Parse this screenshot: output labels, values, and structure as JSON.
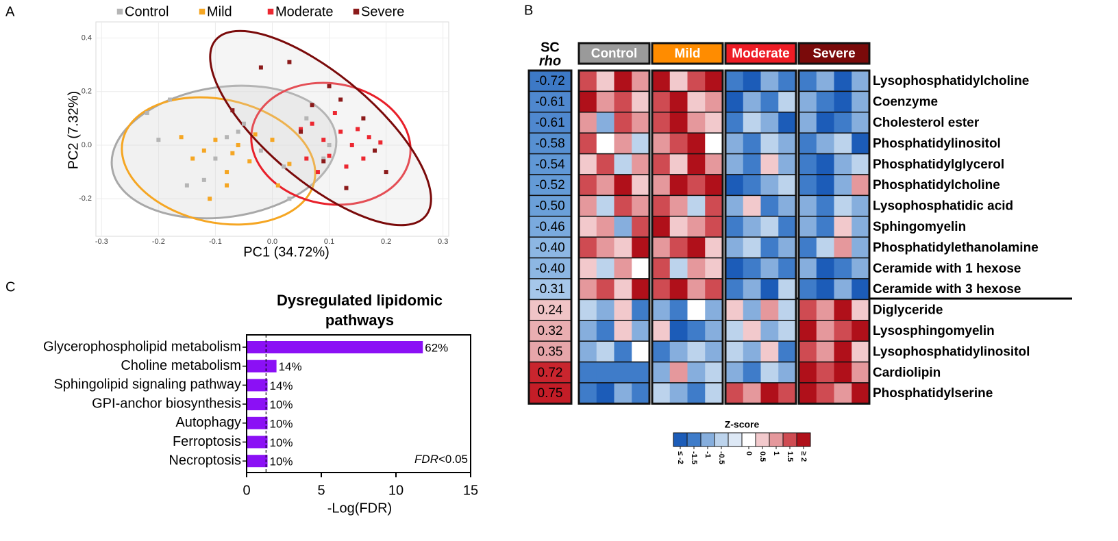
{
  "chart_data": [
    {
      "type": "scatter",
      "panel_label": "A",
      "xlabel": "PC1 (34.72%)",
      "ylabel": "PC2 (7.32%)",
      "xlim": [
        -0.31,
        0.31
      ],
      "ylim": [
        -0.34,
        0.46
      ],
      "xticks": [
        -0.3,
        -0.2,
        -0.1,
        {
          "value": 0,
          "label": "0.0"
        },
        0.1,
        0.2,
        0.3
      ],
      "yticks": [
        -0.2,
        {
          "value": 0,
          "label": "0.0"
        },
        0.2,
        0.4
      ],
      "grid": true,
      "legend": "top",
      "series": [
        {
          "name": "Control",
          "color": "#b5b5b5",
          "x": [
            -0.22,
            -0.18,
            -0.15,
            -0.12,
            -0.1,
            -0.08,
            -0.06,
            -0.05,
            -0.02,
            0.03,
            0.02,
            -0.2,
            0.06,
            0.09,
            0.1
          ],
          "values": [
            0.12,
            0.17,
            -0.15,
            -0.13,
            -0.05,
            0.03,
            0.05,
            0.08,
            -0.02,
            -0.2,
            -0.08,
            0.02,
            0.1,
            -0.05,
            0.0
          ]
        },
        {
          "name": "Mild",
          "color": "#f5a623",
          "x": [
            -0.16,
            -0.14,
            -0.12,
            -0.1,
            -0.08,
            -0.07,
            -0.06,
            -0.04,
            -0.03,
            0.0,
            0.03,
            -0.11,
            -0.08,
            0.01
          ],
          "values": [
            0.03,
            -0.05,
            -0.02,
            0.02,
            -0.1,
            -0.03,
            0.0,
            -0.06,
            0.04,
            0.02,
            -0.07,
            -0.2,
            -0.15,
            -0.15
          ]
        },
        {
          "name": "Moderate",
          "color": "#ec2730",
          "x": [
            0.05,
            0.07,
            0.09,
            0.1,
            0.12,
            0.13,
            0.14,
            0.15,
            0.16,
            0.17,
            0.06,
            0.11,
            0.19,
            0.08
          ],
          "values": [
            0.06,
            0.08,
            0.02,
            -0.04,
            0.05,
            -0.08,
            0.0,
            0.06,
            -0.05,
            0.03,
            -0.05,
            0.12,
            0.01,
            -0.1
          ]
        },
        {
          "name": "Severe",
          "color": "#8b1a1a",
          "x": [
            -0.02,
            0.03,
            -0.07,
            0.07,
            0.1,
            0.12,
            0.05,
            0.13,
            0.2,
            0.16,
            0.09,
            0.18
          ],
          "values": [
            0.29,
            0.31,
            0.13,
            0.15,
            0.22,
            0.17,
            0.05,
            -0.16,
            -0.1,
            0.1,
            -0.06,
            -0.02
          ]
        }
      ]
    },
    {
      "type": "heatmap",
      "panel_label": "B",
      "header": [
        "SC",
        "rho"
      ],
      "groups": [
        "Control",
        "Mild",
        "Moderate",
        "Severe"
      ],
      "group_colors": [
        "#9a9a9a",
        "#ff8c00",
        "#ee1c25",
        "#7a0a0a"
      ],
      "rows": [
        "Lysophosphatidylcholine",
        "Coenzyme",
        "Cholesterol ester",
        "Phosphatidylinositol",
        "Phosphatidylglycerol",
        "Phosphatidylcholine",
        "Lysophosphatidic acid",
        "Sphingomyelin",
        "Phosphatidylethanolamine",
        "Ceramide with 1 hexose",
        "Ceramide with 3 hexose",
        "Diglyceride",
        "Lysosphingomyelin",
        "Lysophosphatidylinositol",
        "Cardiolipin",
        "Phosphatidylserine"
      ],
      "rho": [
        -0.72,
        -0.61,
        -0.61,
        -0.58,
        -0.54,
        -0.52,
        -0.5,
        -0.46,
        -0.4,
        -0.4,
        -0.31,
        0.24,
        0.32,
        0.35,
        0.72,
        0.75
      ],
      "rho_labels": [
        "-0.72",
        "-0.61",
        "-0.61",
        "-0.58",
        "-0.54",
        "-0.52",
        "-0.50",
        "-0.46",
        "-0.40",
        "-0.40",
        "-0.31",
        "0.24",
        "0.32",
        "0.35",
        "0.72",
        "0.75"
      ],
      "rho_colors": [
        "#3d79c6",
        "#4f88cf",
        "#4f88cf",
        "#5790d2",
        "#6098d6",
        "#649bd7",
        "#6ba0d9",
        "#7aaade",
        "#8db7e3",
        "#8db7e3",
        "#a6c7ea",
        "#f0c4c6",
        "#e9aeb1",
        "#e6a5a9",
        "#c9252e",
        "#c41d27"
      ],
      "z": [
        [
          1.5,
          0.5,
          2,
          1,
          2,
          0.5,
          1.5,
          2,
          -1.5,
          -2,
          -1,
          -1.5,
          -1.5,
          -1,
          -2,
          -1
        ],
        [
          2,
          1,
          1.5,
          0.5,
          1.5,
          2,
          0.5,
          1,
          -2,
          -1,
          -1.5,
          -0.5,
          -1,
          -1.5,
          -2,
          -1
        ],
        [
          1,
          -1,
          1.5,
          1,
          1.5,
          2,
          1,
          0.5,
          -1.5,
          -0.5,
          -1,
          -2,
          -1,
          -2,
          -1.5,
          -1
        ],
        [
          1.5,
          0,
          1,
          -0.5,
          1,
          1.5,
          2,
          0,
          -1,
          -1.5,
          -0.5,
          -1,
          -1.5,
          -1,
          -0.5,
          -2
        ],
        [
          0.5,
          1.5,
          -0.5,
          1,
          1.5,
          0.5,
          2,
          1,
          -1,
          -1.5,
          0.5,
          -1,
          -1.5,
          -2,
          -1,
          -0.5
        ],
        [
          1.5,
          1,
          2,
          0.5,
          1,
          2,
          1.5,
          2,
          -2,
          -1.5,
          -1,
          -0.5,
          -1.5,
          -2,
          -1,
          1
        ],
        [
          1,
          -0.5,
          1.5,
          1,
          1.5,
          1,
          -0.5,
          1.5,
          -1,
          0.5,
          -1.5,
          -1,
          -1,
          -1.5,
          -0.5,
          -1
        ],
        [
          0.5,
          1,
          -1,
          1.5,
          2,
          0.5,
          1,
          1.5,
          -1.5,
          -1,
          -0.5,
          -1.5,
          -1,
          -1.5,
          0.5,
          -1
        ],
        [
          1.5,
          1,
          0.5,
          2,
          1,
          1.5,
          2,
          0.5,
          -1,
          -0.5,
          -1.5,
          -1,
          -1.5,
          -0.5,
          1,
          -1
        ],
        [
          0.5,
          -0.5,
          1,
          0,
          1.5,
          -0.5,
          1,
          0.5,
          -2,
          -1.5,
          -1,
          -1.5,
          -1,
          -2,
          -1.5,
          -1
        ],
        [
          1,
          1.5,
          0.5,
          2,
          1.5,
          2,
          1,
          1.5,
          -1.5,
          -1,
          -2,
          -0.5,
          -1.5,
          -2,
          -1,
          -2
        ],
        [
          -0.5,
          -1,
          0.5,
          -1.5,
          -1,
          -1.5,
          0,
          -1,
          0.5,
          -1,
          1,
          -0.5,
          1.5,
          1,
          2,
          0.5
        ],
        [
          -1,
          -1.5,
          0.5,
          -1,
          0.5,
          -2,
          -1.5,
          -1,
          -0.5,
          0.5,
          -1,
          -0.5,
          2,
          1,
          1.5,
          2
        ],
        [
          -1,
          -0.5,
          -1.5,
          0,
          -1.5,
          -1,
          -0.5,
          -1,
          -0.5,
          -1,
          0.5,
          -1.5,
          1.5,
          1,
          2,
          0.5
        ],
        [
          -1.5,
          -1.5,
          -1.5,
          -1.5,
          -1,
          1,
          -1,
          -0.5,
          -1,
          -1.5,
          -0.5,
          -1,
          2,
          1.5,
          2,
          1
        ],
        [
          -1.5,
          -2,
          -1,
          -1.5,
          -0.5,
          -1,
          -1.5,
          -0.5,
          1.5,
          1,
          2,
          1.5,
          2,
          1.5,
          1,
          2
        ]
      ],
      "colorbar": {
        "title": "Z-score",
        "colors": [
          "#1c5cb8",
          "#3f7cc9",
          "#86aedd",
          "#bcd3ec",
          "#dde8f5",
          "#ffffff",
          "#f2c9cc",
          "#e5989c",
          "#cf4b52",
          "#b0101a"
        ],
        "ticks": [
          {
            "value": -2,
            "label": "≤ -2"
          },
          -1.5,
          -1,
          -0.5,
          0,
          0.5,
          1,
          1.5,
          {
            "value": 2,
            "label": "≥ 2"
          }
        ]
      }
    },
    {
      "type": "hbar",
      "panel_label": "C",
      "title": [
        "Dysregulated lipidomic",
        "pathways"
      ],
      "categories": [
        "Glycerophospholipid metabolism",
        "Choline metabolism",
        "Sphingolipid signaling pathway",
        "GPI-anchor biosynthesis",
        "Autophagy",
        "Ferroptosis",
        "Necroptosis"
      ],
      "values": [
        11.8,
        2.0,
        1.4,
        1.4,
        1.4,
        1.4,
        1.4
      ],
      "bar_labels": [
        "62%",
        "14%",
        "14%",
        "10%",
        "10%",
        "10%",
        "10%"
      ],
      "color": "#8b10f5",
      "xlim": [
        0,
        15
      ],
      "xticks": [
        0,
        5,
        10,
        15
      ],
      "xlabel": "-Log(FDR)",
      "threshold": 1.3,
      "annotation": [
        "FDR",
        "<0.05"
      ]
    }
  ]
}
